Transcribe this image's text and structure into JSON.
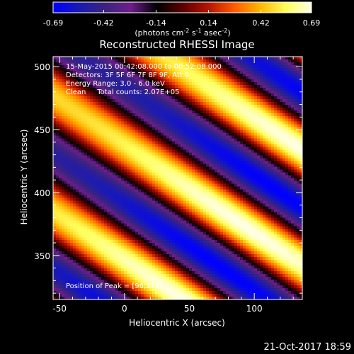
{
  "colorbar": {
    "min": -0.69,
    "max": 0.69,
    "tick_labels": [
      "-0.69",
      "-0.42",
      "-0.14",
      "0.14",
      "0.42",
      "0.69"
    ],
    "unit_label": "(photons cm",
    "unit_sup1": "-2",
    "unit_mid1": " s",
    "unit_sup2": "-1",
    "unit_mid2": " asec",
    "unit_sup3": "-2",
    "unit_end": ")",
    "colormap": [
      "#0000ff",
      "#1a1ab4",
      "#3c237d",
      "#6e1e8c",
      "#000000",
      "#5a0000",
      "#b41400",
      "#ff5a00",
      "#ffb400",
      "#ffff5a",
      "#ffffe6"
    ]
  },
  "chart_data": {
    "type": "heatmap",
    "title": "Reconstructed RHESSI Image",
    "xlabel": "Heliocentric X (arcsec)",
    "ylabel": "Heliocentric Y (arcsec)",
    "xlim": [
      -55,
      137
    ],
    "ylim": [
      315,
      508
    ],
    "x_ticks": [
      -50,
      0,
      50,
      100
    ],
    "y_ticks": [
      350,
      400,
      450,
      500
    ],
    "peak": [
      96,
      371
    ],
    "value_range": [
      -0.69,
      0.69
    ],
    "pattern": {
      "ridge_direction_deg": -35,
      "fringe_period_arcsec": 75,
      "peak_value": 0.69
    }
  },
  "annotations": {
    "time_range": "15-May-2015 00:42:08.000 to 00:52:08.000",
    "detectors": "Detectors: 3F 5F 6F 7F 8F 9F, Att 0",
    "energy": "Energy Range: 3.0 - 6.0 keV",
    "clean": "Clean     Total counts: 2.07E+05",
    "peak_position": "Position of Peak = [96,371]"
  },
  "footer": {
    "timestamp": "21-Oct-2017 18:59"
  }
}
